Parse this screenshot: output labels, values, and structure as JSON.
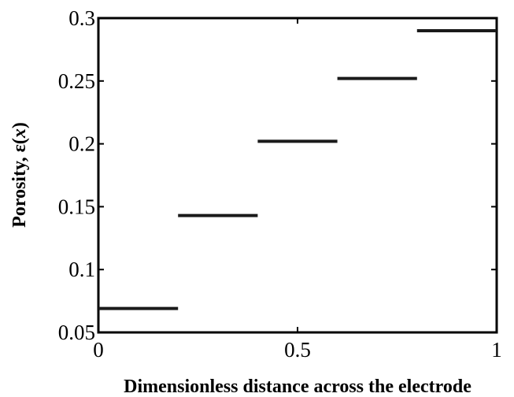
{
  "chart_data": {
    "type": "line",
    "title": "",
    "xlabel": "Dimensionless distance across the electrode",
    "ylabel_parts": [
      "Porosity, ε(",
      "x",
      ")"
    ],
    "xlim": [
      0,
      1
    ],
    "ylim": [
      0.05,
      0.3
    ],
    "xticks": [
      {
        "value": 0,
        "label": "0"
      },
      {
        "value": 0.5,
        "label": "0.5"
      },
      {
        "value": 1,
        "label": "1"
      }
    ],
    "yticks": [
      {
        "value": 0.05,
        "label": "0.05"
      },
      {
        "value": 0.1,
        "label": "0.1"
      },
      {
        "value": 0.15,
        "label": "0.15"
      },
      {
        "value": 0.2,
        "label": "0.2"
      },
      {
        "value": 0.25,
        "label": "0.25"
      },
      {
        "value": 0.3,
        "label": "0.3"
      }
    ],
    "grid": false,
    "series": [
      {
        "style": "piecewise-constant",
        "color": "#1a1a1a",
        "segments": [
          {
            "x_start": 0.0,
            "x_end": 0.2,
            "y": 0.069
          },
          {
            "x_start": 0.2,
            "x_end": 0.4,
            "y": 0.143
          },
          {
            "x_start": 0.4,
            "x_end": 0.6,
            "y": 0.202
          },
          {
            "x_start": 0.6,
            "x_end": 0.8,
            "y": 0.252
          },
          {
            "x_start": 0.8,
            "x_end": 1.0,
            "y": 0.29
          }
        ]
      }
    ]
  }
}
